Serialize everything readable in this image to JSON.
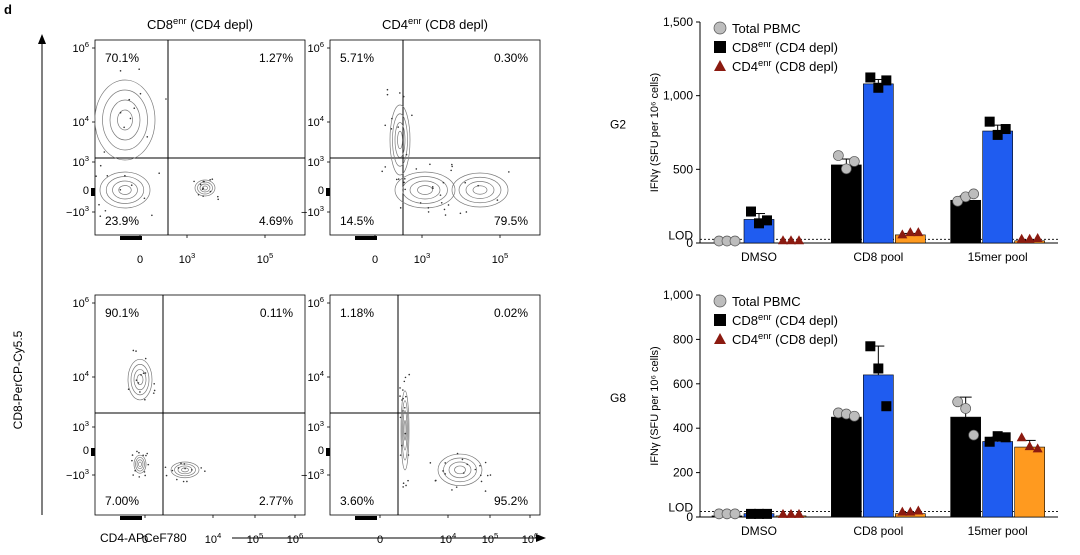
{
  "panel_label": "d",
  "flow": {
    "ylabel": "CD8-PerCP-Cy5.5",
    "xlabel": "CD4-APCeF780",
    "column_titles": [
      {
        "main": "CD8",
        "sup": "enr",
        "rest": " (CD4 depl)"
      },
      {
        "main": "CD4",
        "sup": "enr",
        "rest": " (CD8 depl)"
      }
    ],
    "y_ticks": [
      {
        "base": "10",
        "exp": "6"
      },
      {
        "base": "10",
        "exp": "4"
      },
      {
        "base": "10",
        "exp": "3"
      },
      {
        "base": "0",
        "exp": ""
      },
      {
        "base": "−10",
        "exp": "3"
      }
    ],
    "x_ticks_top": [
      {
        "base": "0",
        "exp": ""
      },
      {
        "base": "10",
        "exp": "3"
      },
      {
        "base": "10",
        "exp": "5"
      }
    ],
    "x_ticks_bottom": [
      {
        "base": "0",
        "exp": ""
      },
      {
        "base": "10",
        "exp": "4"
      },
      {
        "base": "10",
        "exp": "5"
      },
      {
        "base": "10",
        "exp": "6"
      }
    ],
    "plots": [
      {
        "ul": "70.1%",
        "ur": "1.27%",
        "ll": "23.9%",
        "lr": "4.69%"
      },
      {
        "ul": "5.71%",
        "ur": "0.30%",
        "ll": "14.5%",
        "lr": "79.5%"
      },
      {
        "ul": "90.1%",
        "ur": "0.11%",
        "ll": "7.00%",
        "lr": "2.77%"
      },
      {
        "ul": "1.18%",
        "ur": "0.02%",
        "ll": "3.60%",
        "lr": "95.2%"
      }
    ]
  },
  "chart_data": [
    {
      "type": "bar",
      "row_label": "G2",
      "ylabel": "IFNγ (SFU per 10⁶ cells)",
      "ylim": [
        0,
        1500
      ],
      "yticks": [
        "0",
        "500",
        "1,000",
        "1,500"
      ],
      "lod_label": "LOD",
      "lod_value": 25,
      "categories": [
        "DMSO",
        "CD8 pool",
        "15mer pool"
      ],
      "legend": [
        {
          "name": "Total PBMC",
          "sup": "",
          "rest": ""
        },
        {
          "name": "CD8",
          "sup": "enr",
          "rest": " (CD4 depl)"
        },
        {
          "name": "CD4",
          "sup": "enr",
          "rest": " (CD8 depl)"
        }
      ],
      "series": [
        {
          "name": "Total PBMC",
          "values": [
            0,
            530,
            290
          ],
          "errors": [
            0,
            40,
            30
          ],
          "points": [
            [
              0,
              0,
              0
            ],
            [
              580,
              490,
              540
            ],
            [
              270,
              300,
              320
            ]
          ]
        },
        {
          "name": "CD8enr (CD4 depl)",
          "values": [
            160,
            1080,
            760
          ],
          "errors": [
            40,
            30,
            40
          ],
          "points": [
            [
              200,
              120,
              140
            ],
            [
              1110,
              1040,
              1090
            ],
            [
              810,
              720,
              760
            ]
          ]
        },
        {
          "name": "CD4enr (CD8 depl)",
          "values": [
            0,
            55,
            15
          ],
          "errors": [
            0,
            10,
            5
          ],
          "points": [
            [
              5,
              5,
              5
            ],
            [
              45,
              60,
              60
            ],
            [
              15,
              15,
              20
            ]
          ]
        }
      ]
    },
    {
      "type": "bar",
      "row_label": "G8",
      "ylabel": "IFNγ (SFU per 10⁶ cells)",
      "ylim": [
        0,
        1000
      ],
      "yticks": [
        "0",
        "200",
        "400",
        "600",
        "800",
        "1,000"
      ],
      "lod_label": "LOD",
      "lod_value": 25,
      "categories": [
        "DMSO",
        "CD8 pool",
        "15mer pool"
      ],
      "legend": [
        {
          "name": "Total PBMC",
          "sup": "",
          "rest": ""
        },
        {
          "name": "CD8",
          "sup": "enr",
          "rest": " (CD4 depl)"
        },
        {
          "name": "CD4",
          "sup": "enr",
          "rest": " (CD8 depl)"
        }
      ],
      "series": [
        {
          "name": "Total PBMC",
          "values": [
            5,
            450,
            450
          ],
          "errors": [
            0,
            10,
            90
          ],
          "points": [
            [
              5,
              5,
              5
            ],
            [
              460,
              455,
              445
            ],
            [
              510,
              480,
              360
            ]
          ]
        },
        {
          "name": "CD8enr (CD4 depl)",
          "values": [
            15,
            640,
            340
          ],
          "errors": [
            0,
            130,
            20
          ],
          "points": [
            [
              5,
              5,
              5
            ],
            [
              760,
              660,
              490
            ],
            [
              330,
              355,
              350
            ]
          ]
        },
        {
          "name": "CD4enr (CD8 depl)",
          "values": [
            5,
            15,
            315
          ],
          "errors": [
            0,
            5,
            30
          ],
          "points": [
            [
              5,
              5,
              5
            ],
            [
              15,
              15,
              20
            ],
            [
              350,
              310,
              300
            ]
          ]
        }
      ],
      "highlight_color": "#ff9a1f"
    }
  ],
  "colors": {
    "total_bar": "#000000",
    "cd8_bar": "#1f5cf0",
    "cd4_bar": "#ff9a1f",
    "total_marker": "#bdbdbd",
    "cd8_marker": "#000000",
    "cd4_marker": "#8b1a10",
    "contour": "#7a7a7a"
  }
}
